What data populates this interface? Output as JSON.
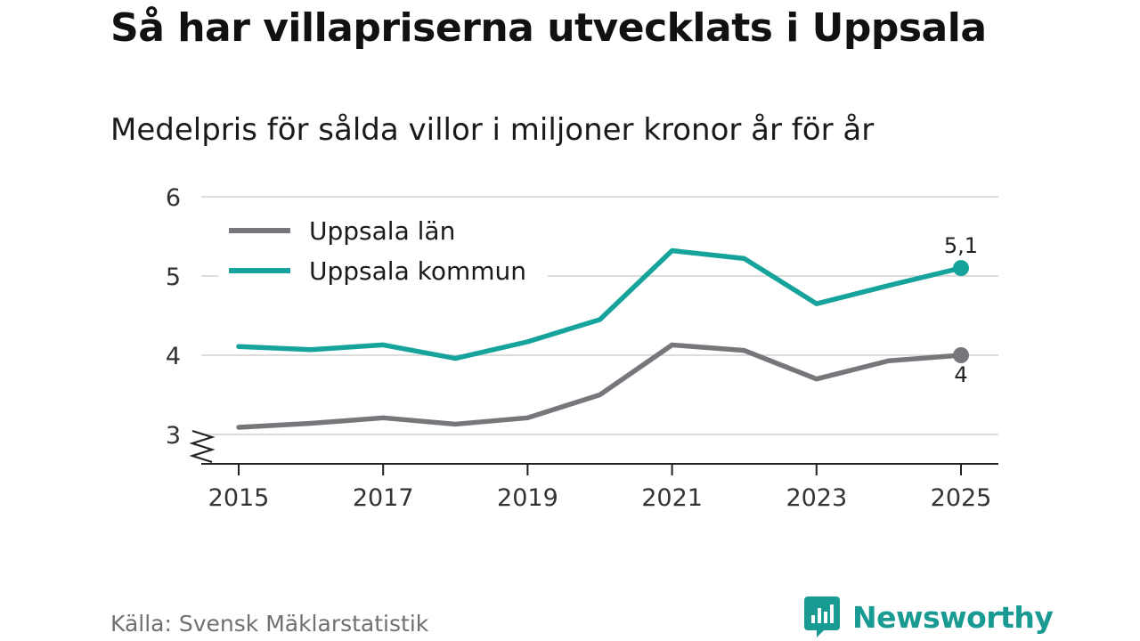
{
  "chart_data": {
    "type": "line",
    "title": "Så har villapriserna utvecklats i Uppsala",
    "subtitle": "Medelpris för sålda villor i miljoner kronor år för år",
    "x": [
      2015,
      2016,
      2017,
      2018,
      2019,
      2020,
      2021,
      2022,
      2023,
      2024,
      2025
    ],
    "x_tick_labels": [
      "2015",
      "2017",
      "2019",
      "2021",
      "2023",
      "2025"
    ],
    "y_tick_labels": [
      "6",
      "5",
      "4",
      "3"
    ],
    "ylim": [
      3,
      6
    ],
    "axis_break": true,
    "grid": true,
    "legend_position": "top-left",
    "series": [
      {
        "name": "Uppsala län",
        "color": "#77767b",
        "values": [
          3.09,
          3.14,
          3.21,
          3.13,
          3.21,
          3.5,
          4.13,
          4.06,
          3.7,
          3.93,
          4.0
        ],
        "end_label": "4"
      },
      {
        "name": "Uppsala kommun",
        "color": "#16a39b",
        "values": [
          4.11,
          4.07,
          4.13,
          3.96,
          4.17,
          4.45,
          5.32,
          5.22,
          4.65,
          4.88,
          5.1
        ],
        "end_label": "5,1"
      }
    ]
  },
  "source": "Källa: Svensk Mäklarstatistik",
  "brand": {
    "name": "Newsworthy",
    "logo_icon": "newsworthy-chart-icon",
    "color": "#199a93"
  }
}
